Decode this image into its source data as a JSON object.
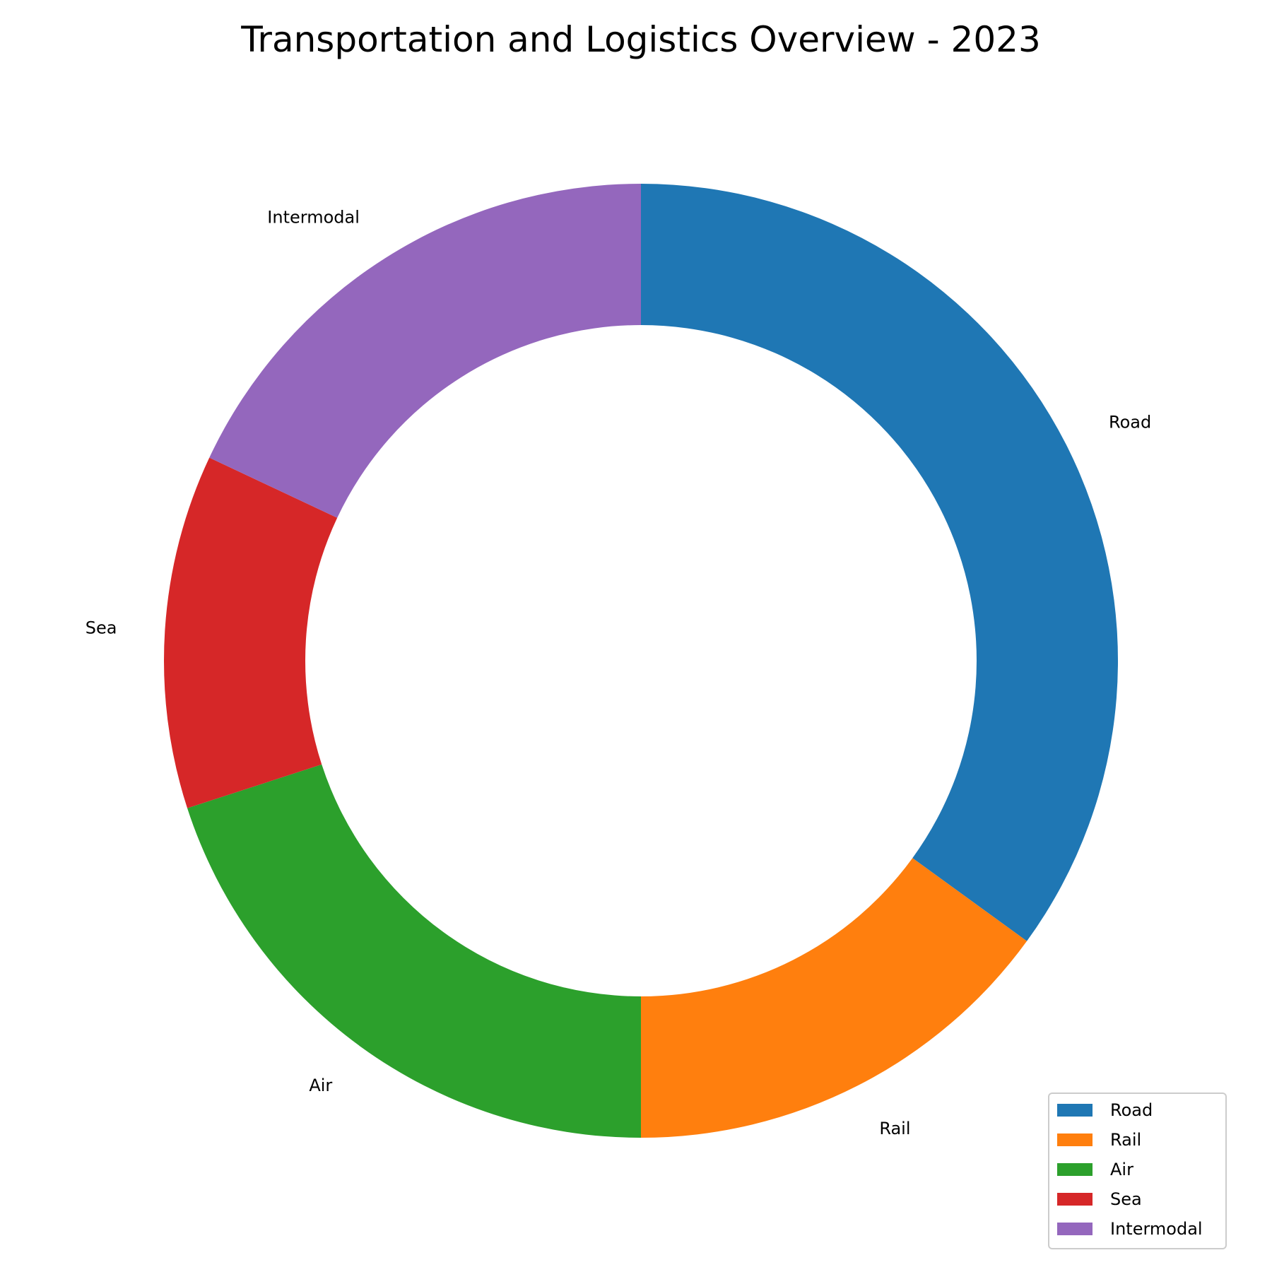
{
  "chart_data": {
    "type": "pie",
    "variant": "donut",
    "title": "Transportation and Logistics Overview - 2023",
    "categories": [
      "Road",
      "Rail",
      "Air",
      "Sea",
      "Intermodal"
    ],
    "values": [
      35,
      15,
      20,
      12,
      18
    ],
    "colors": [
      "#1f77b4",
      "#ff7f0e",
      "#2ca02c",
      "#d62728",
      "#9467bd"
    ],
    "start_angle_deg": 90,
    "direction": "clockwise",
    "legend": {
      "position": "bottom-right",
      "entries": [
        "Road",
        "Rail",
        "Air",
        "Sea",
        "Intermodal"
      ]
    }
  }
}
